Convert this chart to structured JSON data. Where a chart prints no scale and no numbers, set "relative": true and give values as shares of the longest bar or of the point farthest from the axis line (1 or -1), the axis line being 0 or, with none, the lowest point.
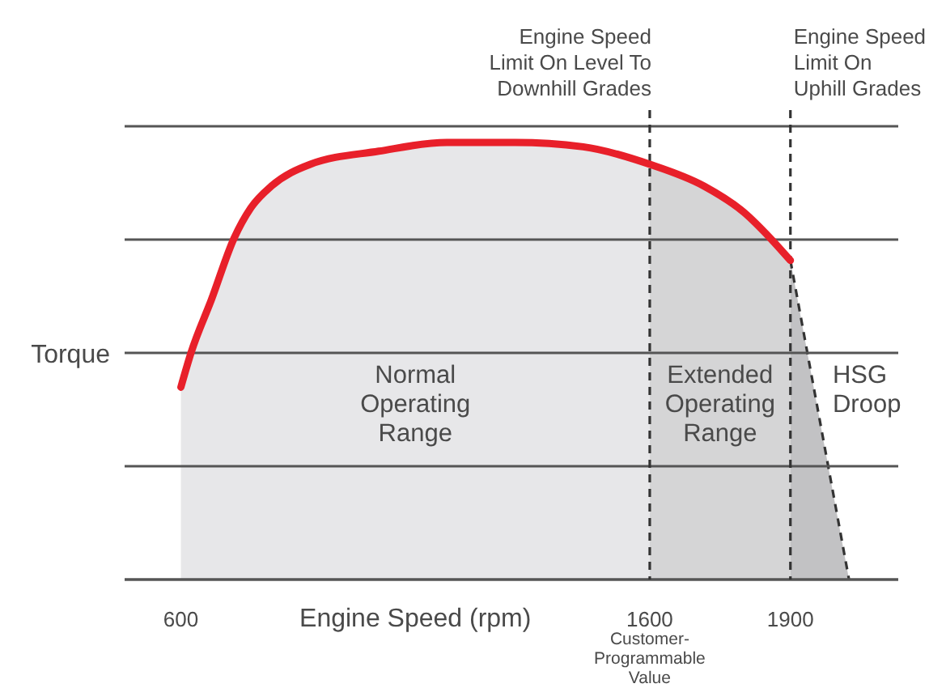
{
  "chart_data": {
    "type": "area",
    "relative": true,
    "ylabel": "Torque",
    "xlabel": "Engine Speed (rpm)",
    "xlim": [
      480,
      2130
    ],
    "xticks": [
      600,
      1600,
      1900
    ],
    "grid": true,
    "series": [
      {
        "name": "Normal\nOperating\nRange",
        "color": "#e7e7e9",
        "x": [
          600,
          622,
          665,
          713,
          749,
          793,
          876,
          1022,
          1167,
          1313,
          1458,
          1600
        ],
        "values": [
          0.44,
          0.52,
          0.64,
          0.78,
          0.85,
          0.9,
          0.95,
          0.98,
          1,
          1,
          0.99,
          0.95
        ]
      },
      {
        "name": "Extended\nOperating\nRange",
        "color": "#d5d5d6",
        "x": [
          1600,
          1716,
          1801,
          1858,
          1900
        ],
        "values": [
          0.95,
          0.9,
          0.84,
          0.78,
          0.73
        ]
      },
      {
        "name": "HSG\nDroop",
        "color": "#c2c2c4",
        "line_style": "dashed",
        "x": [
          1900,
          2025
        ],
        "values": [
          0.73,
          0
        ]
      },
      {
        "type": "line",
        "color": "#e8202a",
        "x": [
          600,
          622,
          665,
          713,
          749,
          793,
          876,
          1022,
          1167,
          1313,
          1458,
          1600,
          1716,
          1801,
          1858,
          1900
        ],
        "values": [
          0.44,
          0.52,
          0.64,
          0.78,
          0.85,
          0.9,
          0.95,
          0.98,
          1,
          1,
          0.99,
          0.95,
          0.9,
          0.84,
          0.78,
          0.73
        ]
      }
    ],
    "ref_lines": [
      {
        "axis": "x",
        "value": 1600,
        "label": "Engine Speed\nLimit On Level To\nDownhill Grades",
        "line_style": "dashed"
      },
      {
        "axis": "x",
        "value": 1900,
        "label": "Engine Speed\nLimit On\nUphill Grades",
        "line_style": "dashed"
      }
    ],
    "annotations": [
      "Customer-\nProgrammable\nValue"
    ]
  }
}
